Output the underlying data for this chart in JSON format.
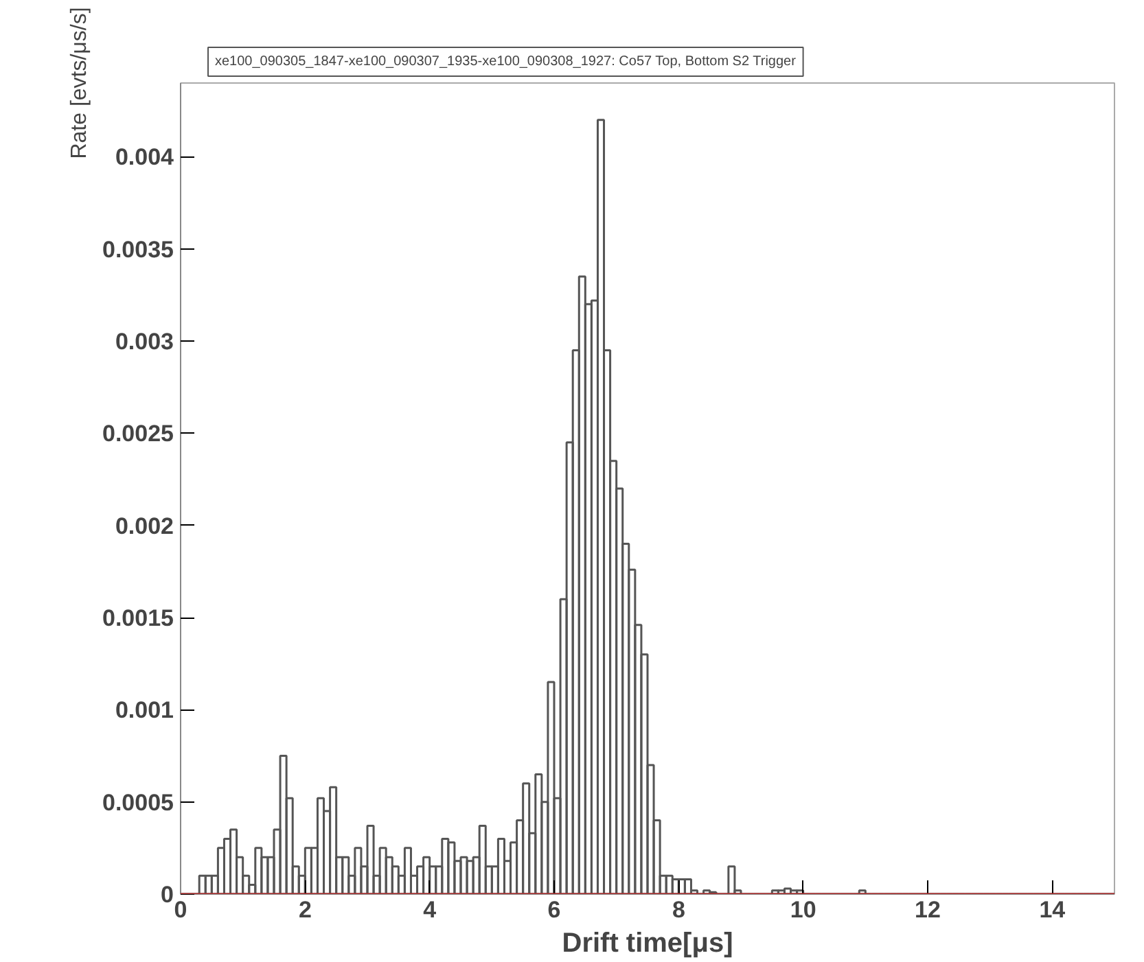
{
  "chart_data": {
    "type": "histogram",
    "title": "xe100_090305_1847-xe100_090307_1935-xe100_090308_1927: Co57 Top, Bottom S2 Trigger",
    "xlabel": "Drift time[μs]",
    "ylabel": "Rate [evts/μs/s]",
    "bins": [
      0,
      0.1,
      0.2,
      0.3,
      0.4,
      0.5,
      0.6,
      0.7,
      0.8,
      0.9,
      1,
      1.1,
      1.2,
      1.3,
      1.4,
      1.5,
      1.6,
      1.7,
      1.8,
      1.9,
      2,
      2.1,
      2.2,
      2.3,
      2.4,
      2.5,
      2.6,
      2.7,
      2.8,
      2.9,
      3,
      3.1,
      3.2,
      3.3,
      3.4,
      3.5,
      3.6,
      3.7,
      3.8,
      3.9,
      4,
      4.1,
      4.2,
      4.3,
      4.4,
      4.5,
      4.6,
      4.7,
      4.8,
      4.9,
      5,
      5.1,
      5.2,
      5.3,
      5.4,
      5.5,
      5.6,
      5.7,
      5.8,
      5.9,
      6,
      6.1,
      6.2,
      6.3,
      6.4,
      6.5,
      6.6,
      6.7,
      6.8,
      6.9,
      7,
      7.1,
      7.2,
      7.3,
      7.4,
      7.5,
      7.6,
      7.7,
      7.8,
      7.9,
      8,
      8.1,
      8.2,
      8.3,
      8.4,
      8.5,
      8.6,
      8.7,
      8.8,
      8.9,
      9,
      9.1,
      9.2,
      9.3,
      9.4,
      9.5,
      9.6,
      9.7,
      9.8,
      9.9,
      10,
      10.1,
      10.2,
      10.3,
      10.4,
      10.5,
      10.6,
      10.7,
      10.8,
      10.9,
      11,
      11.1,
      11.2,
      11.3,
      11.4,
      11.5,
      11.6,
      11.7,
      11.8,
      11.9,
      12,
      12.1,
      12.2,
      12.3,
      12.4,
      12.5,
      12.6,
      12.7,
      12.8,
      12.9,
      13,
      13.1,
      13.2,
      13.3,
      13.4,
      13.5,
      13.6,
      13.7,
      13.8,
      13.9,
      14,
      14.1,
      14.2,
      14.3,
      14.4,
      14.5,
      14.6,
      14.7,
      14.8,
      14.9,
      15
    ],
    "values": [
      0,
      0,
      0,
      0.0001,
      0.0001,
      0.0001,
      0.00025,
      0.0003,
      0.00035,
      0.0002,
      0.0001,
      5e-05,
      0.00025,
      0.0002,
      0.0002,
      0.00035,
      0.00075,
      0.00052,
      0.00015,
      0.0001,
      0.00025,
      0.00025,
      0.00052,
      0.00045,
      0.00058,
      0.0002,
      0.0002,
      0.0001,
      0.00025,
      0.00015,
      0.00037,
      0.0001,
      0.00025,
      0.0002,
      0.00015,
      0.0001,
      0.00025,
      0.0001,
      0.00015,
      0.0002,
      0.00015,
      0.00015,
      0.0003,
      0.00028,
      0.00018,
      0.0002,
      0.00018,
      0.0002,
      0.00037,
      0.00015,
      0.00015,
      0.0003,
      0.00018,
      0.00028,
      0.0004,
      0.0006,
      0.00033,
      0.00065,
      0.0005,
      0.00115,
      0.00052,
      0.0016,
      0.00245,
      0.00295,
      0.00335,
      0.0032,
      0.00322,
      0.0042,
      0.00295,
      0.00235,
      0.0022,
      0.0019,
      0.00176,
      0.00146,
      0.0013,
      0.0007,
      0.0004,
      0.0001,
      0.0001,
      8e-05,
      8e-05,
      8e-05,
      2e-05,
      0,
      2e-05,
      1e-05,
      0,
      0,
      0.00015,
      2e-05,
      0,
      0,
      0,
      0,
      0,
      2e-05,
      2e-05,
      3e-05,
      2e-05,
      2e-05,
      0,
      0,
      0,
      0,
      0,
      0,
      0,
      0,
      0,
      2e-05,
      0,
      0,
      0,
      0,
      0,
      0,
      0,
      0,
      0,
      0,
      0,
      0,
      0,
      0,
      0,
      0,
      0,
      0,
      0,
      0,
      0,
      0,
      0,
      0,
      0,
      0,
      0,
      0,
      0,
      0,
      0,
      0,
      0,
      0,
      0,
      0,
      0,
      0,
      0,
      0
    ],
    "color": "#555555",
    "xlim": [
      0,
      15
    ],
    "ylim": [
      0,
      0.0044
    ],
    "xticks": [
      0,
      2,
      4,
      6,
      8,
      10,
      12,
      14
    ],
    "yticks": [
      0,
      0.0005,
      0.001,
      0.0015,
      0.002,
      0.0025,
      0.003,
      0.0035,
      0.004
    ],
    "ref_lines": [
      {
        "axis": "y",
        "value": 0,
        "color": "#b03030"
      }
    ],
    "grid": false
  }
}
